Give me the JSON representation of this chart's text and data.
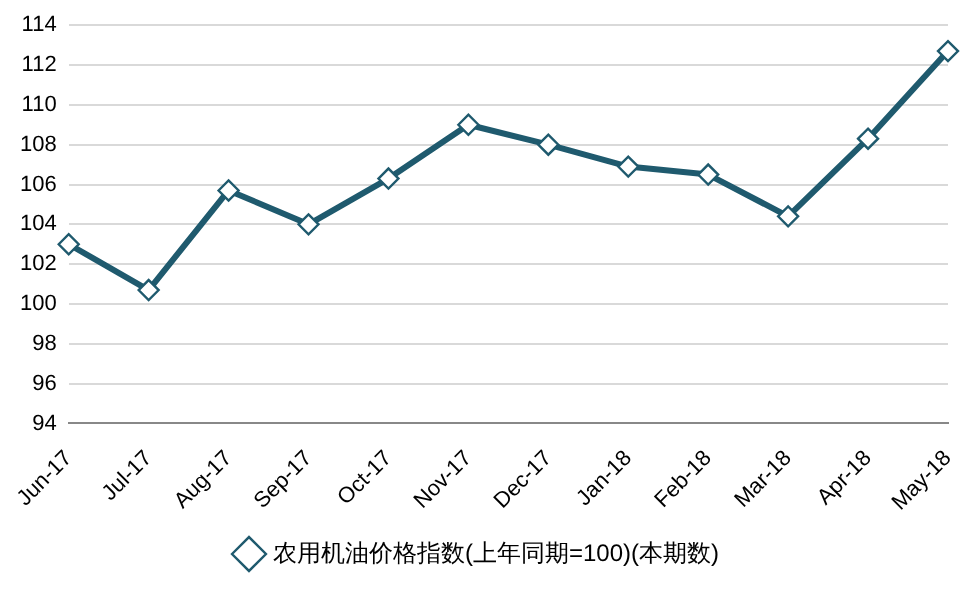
{
  "chart_data": {
    "type": "line",
    "categories": [
      "Jun-17",
      "Jul-17",
      "Aug-17",
      "Sep-17",
      "Oct-17",
      "Nov-17",
      "Dec-17",
      "Jan-18",
      "Feb-18",
      "Mar-18",
      "Apr-18",
      "May-18"
    ],
    "series": [
      {
        "name": "农用机油价格指数(上年同期=100)(本期数)",
        "color": "#1f5a6e",
        "values": [
          103.0,
          100.7,
          105.7,
          104.0,
          106.3,
          109.0,
          108.0,
          106.9,
          106.5,
          104.4,
          108.3,
          112.7
        ]
      }
    ],
    "ylim": [
      94,
      114
    ],
    "yticks": [
      94,
      96,
      98,
      100,
      102,
      104,
      106,
      108,
      110,
      112,
      114
    ],
    "grid": "y",
    "legend": "bottom",
    "marker": "diamond",
    "line_style": "solid"
  }
}
